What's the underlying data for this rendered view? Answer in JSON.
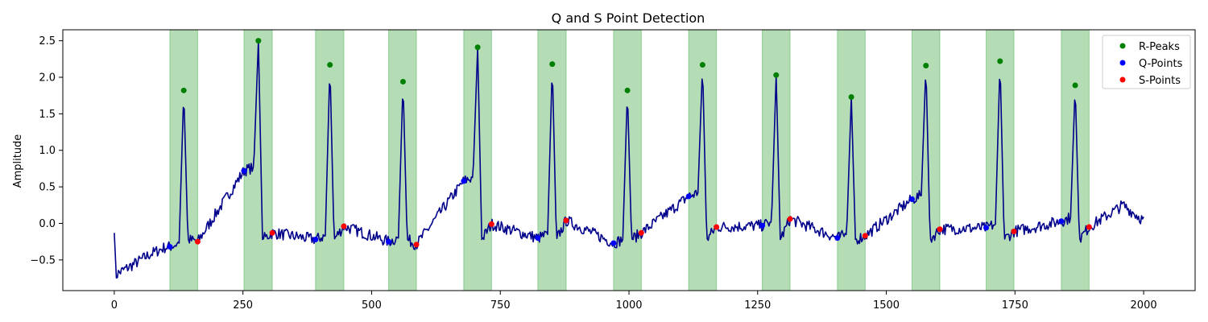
{
  "chart_data": {
    "type": "line",
    "title": "Q and S Point Detection",
    "xlabel": "",
    "ylabel": "Amplitude",
    "xlim": [
      -100,
      2100
    ],
    "ylim": [
      -0.92,
      2.65
    ],
    "x_ticks": [
      0,
      250,
      500,
      750,
      1000,
      1250,
      1500,
      1750,
      2000
    ],
    "y_ticks": [
      -0.5,
      0.0,
      0.5,
      1.0,
      1.5,
      2.0,
      2.5
    ],
    "x_tick_labels": [
      "0",
      "250",
      "500",
      "750",
      "1000",
      "1250",
      "1500",
      "1750",
      "2000"
    ],
    "y_tick_labels": [
      "−0.5",
      "0.0",
      "0.5",
      "1.0",
      "1.5",
      "2.0",
      "2.5"
    ],
    "grid": false,
    "legend_position": "top-right",
    "colors": {
      "signal": "#00008b",
      "r_peaks": "#008000",
      "q_points": "#0000ff",
      "s_points": "#ff0000",
      "qrs_band": "#4caf50"
    },
    "qrs_regions": [
      [
        108,
        162
      ],
      [
        252,
        307
      ],
      [
        391,
        446
      ],
      [
        533,
        587
      ],
      [
        679,
        733
      ],
      [
        823,
        878
      ],
      [
        970,
        1024
      ],
      [
        1116,
        1170
      ],
      [
        1259,
        1313
      ],
      [
        1405,
        1459
      ],
      [
        1550,
        1604
      ],
      [
        1694,
        1748
      ],
      [
        1840,
        1894
      ]
    ],
    "series": [
      {
        "name": "R-Peaks",
        "points": [
          [
            135,
            1.82
          ],
          [
            280,
            2.5
          ],
          [
            419,
            2.17
          ],
          [
            561,
            1.94
          ],
          [
            706,
            2.41
          ],
          [
            851,
            2.18
          ],
          [
            997,
            1.82
          ],
          [
            1143,
            2.17
          ],
          [
            1286,
            2.03
          ],
          [
            1432,
            1.73
          ],
          [
            1577,
            2.16
          ],
          [
            1721,
            2.22
          ],
          [
            1867,
            1.89
          ]
        ]
      },
      {
        "name": "Q-Points",
        "points": [
          [
            108,
            -0.32
          ],
          [
            252,
            0.72
          ],
          [
            391,
            -0.22
          ],
          [
            533,
            -0.25
          ],
          [
            679,
            0.58
          ],
          [
            823,
            -0.2
          ],
          [
            970,
            -0.27
          ],
          [
            1116,
            0.37
          ],
          [
            1259,
            -0.03
          ],
          [
            1405,
            -0.2
          ],
          [
            1550,
            0.33
          ],
          [
            1694,
            -0.06
          ],
          [
            1840,
            0.03
          ]
        ]
      },
      {
        "name": "S-Points",
        "points": [
          [
            162,
            -0.25
          ],
          [
            307,
            -0.13
          ],
          [
            446,
            -0.04
          ],
          [
            587,
            -0.29
          ],
          [
            733,
            -0.01
          ],
          [
            878,
            0.04
          ],
          [
            1024,
            -0.13
          ],
          [
            1170,
            -0.05
          ],
          [
            1313,
            0.06
          ],
          [
            1459,
            -0.17
          ],
          [
            1604,
            -0.08
          ],
          [
            1748,
            -0.11
          ],
          [
            1894,
            -0.05
          ]
        ]
      }
    ]
  }
}
